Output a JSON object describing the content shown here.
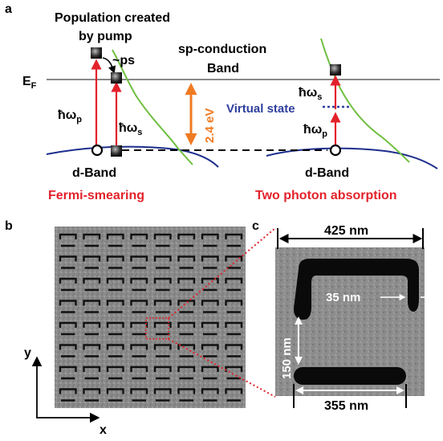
{
  "panels": {
    "a": "a",
    "b": "b",
    "c": "c"
  },
  "panel_a": {
    "fermi_level": "E",
    "fermi_sub": "F",
    "population_line1": "Population created",
    "population_line2": "by pump",
    "relax_time": "~ps",
    "sp_band_line1": "sp-conduction",
    "sp_band_line2": "Band",
    "gap_energy": "2.4 eV",
    "hbar_omega": "ħω",
    "sub_p": "p",
    "sub_s": "s",
    "virtual_state": "Virtual state",
    "d_band_left": "d-Band",
    "d_band_right": "d-Band",
    "mechanism_left": "Fermi-smearing",
    "mechanism_right": "Two photon absorption"
  },
  "panel_c": {
    "top_width": "425 nm",
    "gap": "35 nm",
    "height": "150 nm",
    "bottom_width": "355 nm"
  },
  "axes": {
    "x": "x",
    "y": "y"
  },
  "colors": {
    "photon_arrow": "#e3222b",
    "gap_arrow": "#f07a22",
    "sp_band": "#6fbf3f",
    "d_band": "#1c2e8c",
    "virtual_state": "#2f3f9e",
    "fermi_line": "#888888",
    "mechanism_text": "#e3222b"
  }
}
